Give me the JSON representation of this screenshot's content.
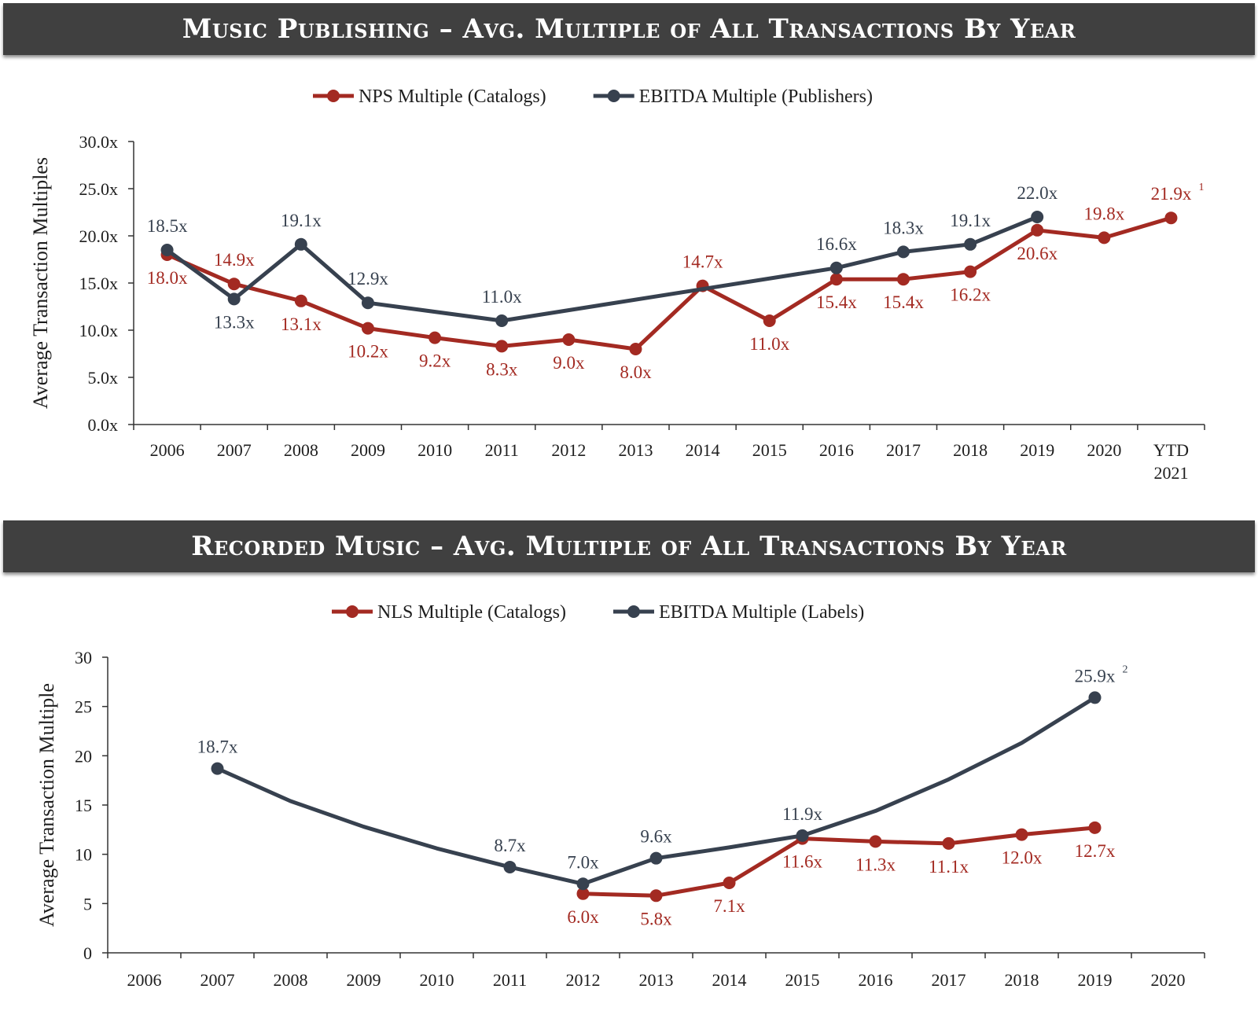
{
  "charts": [
    {
      "banner": "Music Publishing – Avg. Multiple of All Transactions By Year",
      "chart_data": {
        "type": "line",
        "title": "Music Publishing – Avg. Multiple of All Transactions By Year",
        "xlabel": "",
        "ylabel": "Average Transaction Multiples",
        "ylim": [
          0,
          30
        ],
        "yticks": [
          0,
          5,
          10,
          15,
          20,
          25,
          30
        ],
        "ytick_labels": [
          "0.0x",
          "5.0x",
          "10.0x",
          "15.0x",
          "20.0x",
          "25.0x",
          "30.0x"
        ],
        "categories": [
          "2006",
          "2007",
          "2008",
          "2009",
          "2010",
          "2011",
          "2012",
          "2013",
          "2014",
          "2015",
          "2016",
          "2017",
          "2018",
          "2019",
          "2020",
          "YTD 2021"
        ],
        "legend_position": "top-center",
        "series": [
          {
            "name": "NPS Multiple (Catalogs)",
            "color": "#a32a22",
            "values": [
              18.0,
              14.9,
              13.1,
              10.2,
              9.2,
              8.3,
              9.0,
              8.0,
              14.7,
              11.0,
              15.4,
              15.4,
              16.2,
              20.6,
              19.8,
              21.9
            ],
            "labels": [
              "18.0x",
              "14.9x",
              "13.1x",
              "10.2x",
              "9.2x",
              "8.3x",
              "9.0x",
              "8.0x",
              "14.7x",
              "11.0x",
              "15.4x",
              "15.4x",
              "16.2x",
              "20.6x",
              "19.8x",
              "21.9x"
            ],
            "label_pos": [
              "below",
              "above",
              "below",
              "below",
              "below",
              "below",
              "below",
              "below",
              "above",
              "below",
              "below",
              "below",
              "below",
              "below",
              "above",
              "above"
            ],
            "marker_hidden": [],
            "footnotes": {
              "15": "1"
            }
          },
          {
            "name": "EBITDA Multiple (Publishers)",
            "color": "#37414f",
            "values": [
              18.5,
              13.3,
              19.1,
              12.9,
              null,
              11.0,
              null,
              null,
              null,
              null,
              16.6,
              18.3,
              19.1,
              22.0,
              null,
              null
            ],
            "labels": [
              "18.5x",
              "13.3x",
              "19.1x",
              "12.9x",
              null,
              "11.0x",
              null,
              null,
              null,
              null,
              "16.6x",
              "18.3x",
              "19.1x",
              "22.0x",
              null,
              null
            ],
            "label_pos": [
              "above",
              "below",
              "above",
              "above",
              null,
              "above",
              null,
              null,
              null,
              null,
              "above",
              "above",
              "above",
              "above",
              null,
              null
            ],
            "marker_hidden": [],
            "connect_gaps": true,
            "footnotes": {}
          }
        ]
      }
    },
    {
      "banner": "Recorded Music – Avg. Multiple of All Transactions By Year",
      "chart_data": {
        "type": "line",
        "title": "Recorded Music – Avg. Multiple of All Transactions By Year",
        "xlabel": "",
        "ylabel": "Average Transaction Multiple",
        "ylim": [
          0,
          30
        ],
        "yticks": [
          0,
          5,
          10,
          15,
          20,
          25,
          30
        ],
        "ytick_labels": [
          "0",
          "5",
          "10",
          "15",
          "20",
          "25",
          "30"
        ],
        "categories": [
          "2006",
          "2007",
          "2008",
          "2009",
          "2010",
          "2011",
          "2012",
          "2013",
          "2014",
          "2015",
          "2016",
          "2017",
          "2018",
          "2019",
          "2020"
        ],
        "legend_position": "top-center",
        "series": [
          {
            "name": "NLS Multiple (Catalogs)",
            "color": "#a32a22",
            "values": [
              null,
              null,
              null,
              null,
              null,
              null,
              6.0,
              5.8,
              7.1,
              11.6,
              11.3,
              11.1,
              12.0,
              12.7,
              null
            ],
            "labels": [
              null,
              null,
              null,
              null,
              null,
              null,
              "6.0x",
              "5.8x",
              "7.1x",
              "11.6x",
              "11.3x",
              "11.1x",
              "12.0x",
              "12.7x",
              null
            ],
            "label_pos": [
              null,
              null,
              null,
              null,
              null,
              null,
              "below",
              "below",
              "below",
              "below",
              "below",
              "below",
              "below",
              "below",
              null
            ],
            "marker_hidden": [],
            "footnotes": {}
          },
          {
            "name": "EBITDA Multiple (Labels)",
            "color": "#37414f",
            "values": [
              null,
              18.7,
              15.4,
              12.8,
              10.6,
              8.7,
              7.0,
              9.6,
              10.7,
              11.9,
              14.4,
              17.6,
              21.3,
              25.9,
              null
            ],
            "labels": [
              null,
              "18.7x",
              null,
              null,
              null,
              "8.7x",
              "7.0x",
              "9.6x",
              null,
              "11.9x",
              null,
              null,
              null,
              "25.9x",
              null
            ],
            "label_pos": [
              null,
              "above",
              null,
              null,
              null,
              "above",
              "above",
              "above",
              null,
              "above",
              null,
              null,
              null,
              "above",
              null
            ],
            "marker_hidden": [
              2,
              3,
              4,
              8,
              10,
              11,
              12
            ],
            "footnotes": {
              "13": "2"
            }
          }
        ]
      }
    }
  ]
}
